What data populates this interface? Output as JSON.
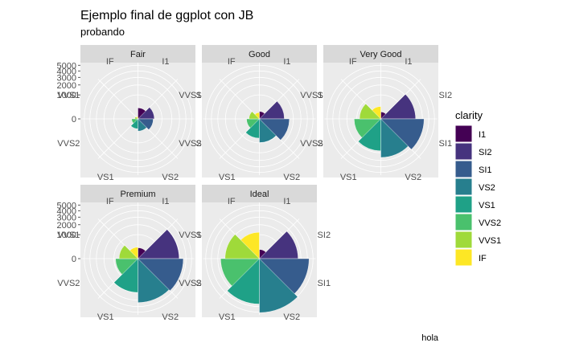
{
  "chart_data": {
    "type": "polar-bar",
    "title": "Ejemplo final de ggplot con JB",
    "subtitle": "probando",
    "caption": "hola",
    "categories": [
      "I1",
      "SI2",
      "SI1",
      "VS2",
      "VS1",
      "VVS2",
      "VVS1",
      "IF"
    ],
    "category_tick_labels": [
      "I1",
      "SI2",
      "SI1",
      "VS2",
      "VS1",
      "VVS2",
      "VVS1",
      "IF"
    ],
    "r_ticks": [
      0,
      1000,
      2000,
      3000,
      4000,
      5000
    ],
    "rlim": [
      0,
      5500
    ],
    "grid": true,
    "facets": [
      {
        "label": "Fair",
        "values": [
          210,
          466,
          408,
          261,
          170,
          69,
          17,
          9
        ]
      },
      {
        "label": "Good",
        "values": [
          96,
          1081,
          1560,
          978,
          648,
          286,
          186,
          71
        ]
      },
      {
        "label": "Very Good",
        "values": [
          84,
          2100,
          3240,
          2591,
          1775,
          1235,
          789,
          268
        ]
      },
      {
        "label": "Premium",
        "values": [
          205,
          2949,
          3575,
          3357,
          1989,
          870,
          616,
          230
        ]
      },
      {
        "label": "Ideal",
        "values": [
          146,
          2598,
          4282,
          5071,
          3589,
          2606,
          2047,
          1212
        ]
      }
    ],
    "legend": {
      "title": "clarity",
      "position": "right",
      "items": [
        "I1",
        "SI2",
        "SI1",
        "VS2",
        "VS1",
        "VVS2",
        "VVS1",
        "IF"
      ]
    },
    "colors": [
      "#440154",
      "#46337e",
      "#365c8d",
      "#277f8e",
      "#1fa187",
      "#4ac16d",
      "#9fda3a",
      "#fde725"
    ]
  }
}
